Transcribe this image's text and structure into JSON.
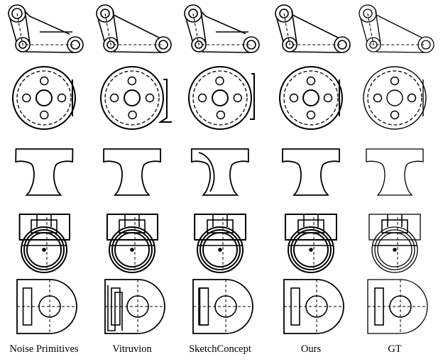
{
  "figure": {
    "columns": [
      {
        "label": "Noise Primitives"
      },
      {
        "label": "Vitruvion"
      },
      {
        "label": "SketchConcept"
      },
      {
        "label": "Ours"
      },
      {
        "label": "GT"
      }
    ],
    "rows": [
      {
        "shape": "linkage-arm"
      },
      {
        "shape": "flange-disc"
      },
      {
        "shape": "t-profile"
      },
      {
        "shape": "circle-bracket"
      },
      {
        "shape": "d-plate"
      }
    ]
  }
}
